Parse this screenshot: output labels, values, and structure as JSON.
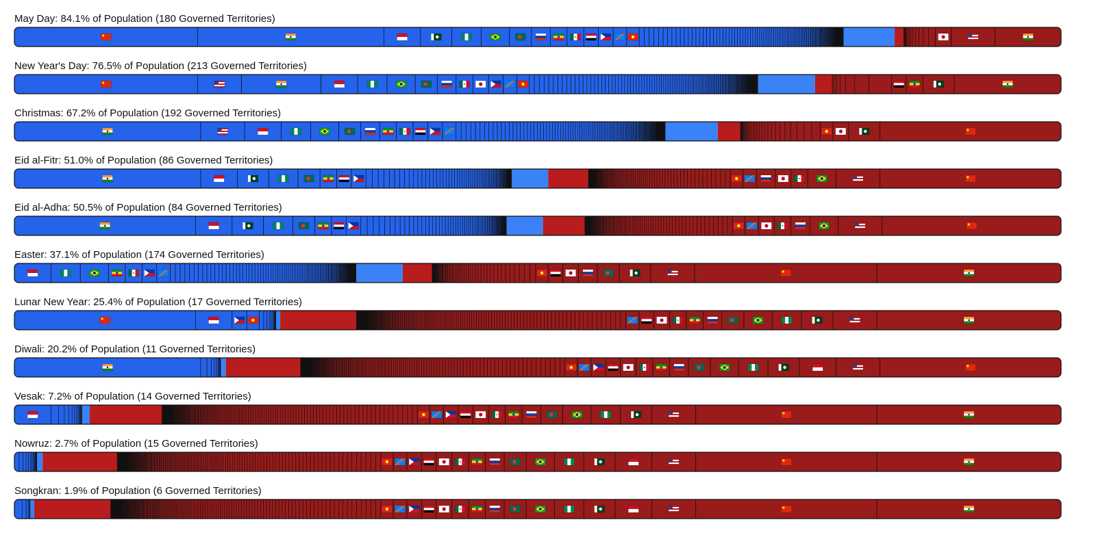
{
  "colors": {
    "observed": "#2563eb",
    "observed_other": "#3b82f6",
    "not_observed": "#991b1b",
    "not_observed_other": "#b91c1c",
    "divider": "#111111"
  },
  "chart_data": {
    "type": "bar",
    "orientation": "horizontal-stacked-100",
    "legend": "none",
    "flag_icon_names": {
      "CN": "china-flag-icon",
      "IN": "india-flag-icon",
      "US": "usa-flag-icon",
      "ID": "indonesia-flag-icon",
      "PK": "pakistan-flag-icon",
      "NG": "nigeria-flag-icon",
      "BR": "brazil-flag-icon",
      "BD": "bangladesh-flag-icon",
      "RU": "russia-flag-icon",
      "ET": "ethiopia-flag-icon",
      "MX": "mexico-flag-icon",
      "JP": "japan-flag-icon",
      "EG": "egypt-flag-icon",
      "PH": "philippines-flag-icon",
      "CD": "dr-congo-flag-icon",
      "VN": "vietnam-flag-icon"
    },
    "holidays": [
      {
        "title": "May Day: 84.1% of Population (180 Governed Territories)",
        "observed_pct": 84.1,
        "observed_major": [
          [
            "CN",
            17.5
          ],
          [
            "IN",
            17.8
          ],
          [
            "ID",
            3.5
          ],
          [
            "PK",
            3.0
          ],
          [
            "NG",
            2.8
          ],
          [
            "BR",
            2.7
          ],
          [
            "BD",
            2.1
          ],
          [
            "RU",
            1.8
          ],
          [
            "ET",
            1.6
          ],
          [
            "MX",
            1.6
          ],
          [
            "EG",
            1.4
          ],
          [
            "PH",
            1.4
          ],
          [
            "CD",
            1.3
          ],
          [
            "VN",
            1.2
          ]
        ],
        "observed_other_count": 166,
        "not_observed_major": [
          [
            "JP",
            1.5
          ],
          [
            "US",
            4.2
          ],
          [
            "IN",
            6.3
          ]
        ],
        "not_observed_other_count": 15
      },
      {
        "title": "New Year's Day: 76.5% of Population (213 Governed Territories)",
        "observed_pct": 76.5,
        "observed_major": [
          [
            "CN",
            17.5
          ],
          [
            "US",
            4.2
          ],
          [
            "IN",
            7.6
          ],
          [
            "ID",
            3.5
          ],
          [
            "NG",
            2.8
          ],
          [
            "BR",
            2.7
          ],
          [
            "BD",
            2.1
          ],
          [
            "RU",
            1.8
          ],
          [
            "MX",
            1.6
          ],
          [
            "JP",
            1.5
          ],
          [
            "PH",
            1.4
          ],
          [
            "CD",
            1.3
          ],
          [
            "VN",
            1.2
          ]
        ],
        "observed_other_count": 200,
        "not_observed_major": [
          [
            "EG",
            1.4
          ],
          [
            "ET",
            1.6
          ],
          [
            "PK",
            3.0
          ],
          [
            "IN",
            10.2
          ]
        ],
        "not_observed_other_count": 8
      },
      {
        "title": "Christmas: 67.2% of Population (192 Governed Territories)",
        "observed_pct": 67.2,
        "observed_major": [
          [
            "IN",
            17.8
          ],
          [
            "US",
            4.2
          ],
          [
            "ID",
            3.5
          ],
          [
            "NG",
            2.8
          ],
          [
            "BR",
            2.7
          ],
          [
            "BD",
            2.1
          ],
          [
            "RU",
            1.8
          ],
          [
            "ET",
            1.6
          ],
          [
            "MX",
            1.6
          ],
          [
            "EG",
            1.4
          ],
          [
            "PH",
            1.4
          ],
          [
            "CD",
            1.3
          ]
        ],
        "observed_other_count": 180,
        "not_observed_major": [
          [
            "VN",
            1.2
          ],
          [
            "JP",
            1.5
          ],
          [
            "PK",
            3.0
          ],
          [
            "CN",
            17.3
          ]
        ],
        "not_observed_other_count": 30
      },
      {
        "title": "Eid al-Fitr: 51.0% of Population (86 Governed Territories)",
        "observed_pct": 51.0,
        "observed_major": [
          [
            "IN",
            17.8
          ],
          [
            "ID",
            3.5
          ],
          [
            "PK",
            3.0
          ],
          [
            "NG",
            2.8
          ],
          [
            "BD",
            2.1
          ],
          [
            "ET",
            1.6
          ],
          [
            "EG",
            1.4
          ],
          [
            "PH",
            1.4
          ]
        ],
        "observed_other_count": 78,
        "not_observed_major": [
          [
            "VN",
            1.2
          ],
          [
            "CD",
            1.3
          ],
          [
            "RU",
            1.8
          ],
          [
            "JP",
            1.5
          ],
          [
            "MX",
            1.6
          ],
          [
            "BR",
            2.7
          ],
          [
            "US",
            4.2
          ],
          [
            "CN",
            17.3
          ]
        ],
        "not_observed_other_count": 140
      },
      {
        "title": "Eid al-Adha: 50.5% of Population (84 Governed Territories)",
        "observed_pct": 50.5,
        "observed_major": [
          [
            "IN",
            17.3
          ],
          [
            "ID",
            3.5
          ],
          [
            "PK",
            3.0
          ],
          [
            "NG",
            2.8
          ],
          [
            "BD",
            2.1
          ],
          [
            "ET",
            1.6
          ],
          [
            "EG",
            1.4
          ],
          [
            "PH",
            1.4
          ]
        ],
        "observed_other_count": 76,
        "not_observed_major": [
          [
            "VN",
            1.2
          ],
          [
            "CD",
            1.3
          ],
          [
            "JP",
            1.5
          ],
          [
            "MX",
            1.6
          ],
          [
            "RU",
            1.8
          ],
          [
            "BR",
            2.7
          ],
          [
            "US",
            4.2
          ],
          [
            "CN",
            17.1
          ]
        ],
        "not_observed_other_count": 140
      },
      {
        "title": "Easter: 37.1% of Population (174 Governed Territories)",
        "observed_pct": 37.1,
        "observed_major": [
          [
            "ID",
            3.5
          ],
          [
            "NG",
            2.8
          ],
          [
            "BR",
            2.7
          ],
          [
            "ET",
            1.6
          ],
          [
            "MX",
            1.6
          ],
          [
            "PH",
            1.4
          ],
          [
            "CD",
            1.3
          ]
        ],
        "observed_other_count": 167,
        "not_observed_major": [
          [
            "VN",
            1.2
          ],
          [
            "EG",
            1.4
          ],
          [
            "JP",
            1.5
          ],
          [
            "RU",
            1.8
          ],
          [
            "BD",
            2.1
          ],
          [
            "PK",
            3.0
          ],
          [
            "US",
            4.2
          ],
          [
            "CN",
            17.4
          ],
          [
            "IN",
            17.6
          ]
        ],
        "not_observed_other_count": 60
      },
      {
        "title": "Lunar New Year: 25.4% of Population (17 Governed Territories)",
        "observed_pct": 25.4,
        "observed_major": [
          [
            "CN",
            17.3
          ],
          [
            "ID",
            3.5
          ],
          [
            "PH",
            1.4
          ],
          [
            "VN",
            1.2
          ]
        ],
        "observed_other_count": 13,
        "not_observed_major": [
          [
            "CD",
            1.3
          ],
          [
            "EG",
            1.4
          ],
          [
            "JP",
            1.5
          ],
          [
            "MX",
            1.6
          ],
          [
            "ET",
            1.6
          ],
          [
            "RU",
            1.8
          ],
          [
            "BD",
            2.1
          ],
          [
            "BR",
            2.7
          ],
          [
            "NG",
            2.8
          ],
          [
            "PK",
            3.0
          ],
          [
            "US",
            4.2
          ],
          [
            "IN",
            17.6
          ]
        ],
        "not_observed_other_count": 190
      },
      {
        "title": "Diwali: 20.2% of Population (11 Governed Territories)",
        "observed_pct": 20.2,
        "observed_major": [
          [
            "IN",
            17.8
          ]
        ],
        "observed_other_count": 10,
        "not_observed_major": [
          [
            "VN",
            1.2
          ],
          [
            "CD",
            1.3
          ],
          [
            "PH",
            1.4
          ],
          [
            "EG",
            1.4
          ],
          [
            "JP",
            1.5
          ],
          [
            "MX",
            1.6
          ],
          [
            "ET",
            1.6
          ],
          [
            "RU",
            1.8
          ],
          [
            "BD",
            2.1
          ],
          [
            "BR",
            2.7
          ],
          [
            "NG",
            2.8
          ],
          [
            "PK",
            3.0
          ],
          [
            "ID",
            3.5
          ],
          [
            "US",
            4.2
          ],
          [
            "CN",
            17.3
          ]
        ],
        "not_observed_other_count": 200
      },
      {
        "title": "Vesak: 7.2% of Population (14 Governed Territories)",
        "observed_pct": 7.2,
        "observed_major": [
          [
            "ID",
            3.5
          ]
        ],
        "observed_other_count": 13,
        "not_observed_major": [
          [
            "VN",
            1.2
          ],
          [
            "CD",
            1.3
          ],
          [
            "PH",
            1.4
          ],
          [
            "EG",
            1.4
          ],
          [
            "JP",
            1.5
          ],
          [
            "MX",
            1.6
          ],
          [
            "ET",
            1.6
          ],
          [
            "RU",
            1.8
          ],
          [
            "BD",
            2.1
          ],
          [
            "BR",
            2.7
          ],
          [
            "NG",
            2.8
          ],
          [
            "PK",
            3.0
          ],
          [
            "US",
            4.2
          ],
          [
            "CN",
            17.3
          ],
          [
            "IN",
            17.6
          ]
        ],
        "not_observed_other_count": 200
      },
      {
        "title": "Nowruz: 2.7% of Population (15 Governed Territories)",
        "observed_pct": 2.7,
        "observed_major": [],
        "observed_other_count": 15,
        "not_observed_major": [
          [
            "VN",
            1.2
          ],
          [
            "CD",
            1.3
          ],
          [
            "PH",
            1.4
          ],
          [
            "EG",
            1.4
          ],
          [
            "JP",
            1.5
          ],
          [
            "MX",
            1.6
          ],
          [
            "ET",
            1.6
          ],
          [
            "RU",
            1.8
          ],
          [
            "BD",
            2.1
          ],
          [
            "BR",
            2.7
          ],
          [
            "NG",
            2.8
          ],
          [
            "PK",
            3.0
          ],
          [
            "ID",
            3.5
          ],
          [
            "US",
            4.2
          ],
          [
            "CN",
            17.3
          ],
          [
            "IN",
            17.6
          ]
        ],
        "not_observed_other_count": 200
      },
      {
        "title": "Songkran: 1.9% of Population (6 Governed Territories)",
        "observed_pct": 1.9,
        "observed_major": [],
        "observed_other_count": 6,
        "not_observed_major": [
          [
            "VN",
            1.2
          ],
          [
            "CD",
            1.3
          ],
          [
            "PH",
            1.4
          ],
          [
            "EG",
            1.4
          ],
          [
            "JP",
            1.5
          ],
          [
            "MX",
            1.6
          ],
          [
            "ET",
            1.6
          ],
          [
            "RU",
            1.8
          ],
          [
            "BD",
            2.1
          ],
          [
            "BR",
            2.7
          ],
          [
            "NG",
            2.8
          ],
          [
            "PK",
            3.0
          ],
          [
            "ID",
            3.5
          ],
          [
            "US",
            4.2
          ],
          [
            "CN",
            17.3
          ],
          [
            "IN",
            17.6
          ]
        ],
        "not_observed_other_count": 200
      }
    ]
  }
}
